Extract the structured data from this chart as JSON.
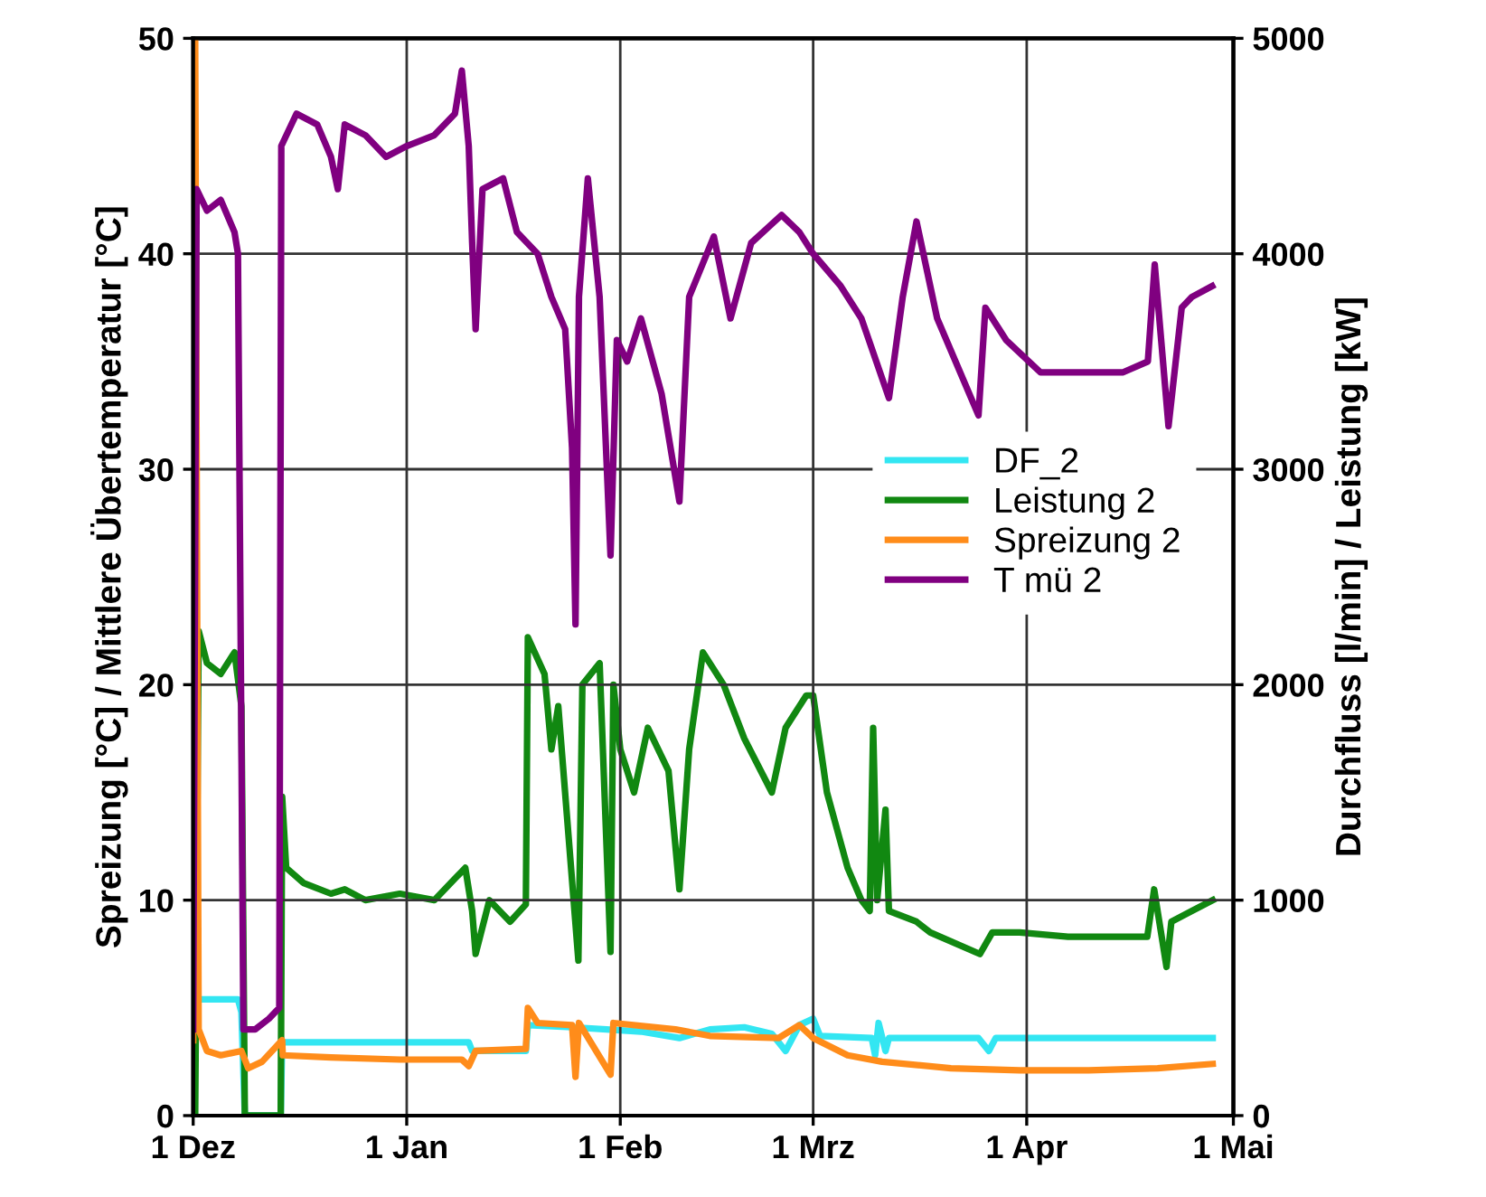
{
  "chart_data": {
    "type": "line",
    "ylabel": "Spreizung [°C] / Mittlere Übertemperatur [°C]",
    "y2label": "Durchfluss [l/min] / Leistung [kW]",
    "xlim": [
      "2000-12-01",
      "2001-05-01"
    ],
    "xticks": [
      {
        "value": "2000-12-01",
        "label": "1 Dez"
      },
      {
        "value": "2001-01-01",
        "label": "1 Jan"
      },
      {
        "value": "2001-02-01",
        "label": "1 Feb"
      },
      {
        "value": "2001-03-01",
        "label": "1 Mrz"
      },
      {
        "value": "2001-04-01",
        "label": "1 Apr"
      },
      {
        "value": "2001-05-01",
        "label": "1 Mai"
      }
    ],
    "ylim": [
      0,
      50
    ],
    "yticks": [
      0,
      10,
      20,
      30,
      40,
      50
    ],
    "y2lim": [
      0,
      5000
    ],
    "y2ticks": [
      0,
      1000,
      2000,
      3000,
      4000,
      5000
    ],
    "grid": true,
    "legend": "right",
    "line_style": "solid",
    "marker": "none",
    "series": [
      {
        "name": "DF_2",
        "color": "#33e6f2",
        "axis": "y2",
        "x": [
          "2000-12-01T07:00",
          "2000-12-07T12:00",
          "2000-12-08",
          "2000-12-08T12:00",
          "2000-12-13T17:00",
          "2000-12-13T22:00",
          "2001-01-10",
          "2001-01-10T12:00",
          "2001-01-18T07:00",
          "2001-01-18T14:00",
          "2001-01-25",
          "2001-01-30",
          "2001-02-04",
          "2001-02-09T14:00",
          "2001-02-14",
          "2001-02-19",
          "2001-02-23",
          "2001-02-25",
          "2001-02-27",
          "2001-03-01",
          "2001-03-02",
          "2001-03-09T12:00",
          "2001-03-10",
          "2001-03-10T12:00",
          "2001-03-11T12:00",
          "2001-03-12",
          "2001-03-25",
          "2001-03-26T12:00",
          "2001-03-27T12:00",
          "2001-04-28"
        ],
        "values": [
          540,
          540,
          480,
          0,
          0,
          340,
          340,
          300,
          300,
          420,
          410,
          400,
          390,
          360,
          400,
          410,
          380,
          300,
          420,
          450,
          370,
          360,
          280,
          430,
          300,
          360,
          360,
          300,
          360,
          360
        ]
      },
      {
        "name": "Leistung 2",
        "color": "#118811",
        "axis": "y2",
        "x": [
          "2000-12-01T07:00",
          "2000-12-01T19:00",
          "2000-12-03",
          "2000-12-05",
          "2000-12-07",
          "2000-12-08",
          "2000-12-08T12:00",
          "2000-12-13T17:00",
          "2000-12-13T22:00",
          "2000-12-14T12:00",
          "2000-12-17",
          "2000-12-21",
          "2000-12-23",
          "2000-12-26",
          "2000-12-31",
          "2001-01-05",
          "2001-01-08",
          "2001-01-09T12:00",
          "2001-01-10T12:00",
          "2001-01-11",
          "2001-01-13",
          "2001-01-16",
          "2001-01-18T07:00",
          "2001-01-18T14:00",
          "2001-01-21",
          "2001-01-22",
          "2001-01-23",
          "2001-01-25T22:00",
          "2001-01-26T12:00",
          "2001-01-29",
          "2001-01-30T14:00",
          "2001-01-31",
          "2001-02-01",
          "2001-02-03",
          "2001-02-05",
          "2001-02-08",
          "2001-02-09T14:00",
          "2001-02-11",
          "2001-02-13",
          "2001-02-16",
          "2001-02-19",
          "2001-02-23",
          "2001-02-25",
          "2001-02-28",
          "2001-03-01",
          "2001-03-03",
          "2001-03-06",
          "2001-03-08",
          "2001-03-09T05:00",
          "2001-03-09T17:00",
          "2001-03-10T07:00",
          "2001-03-11T12:00",
          "2001-03-12",
          "2001-03-16",
          "2001-03-18",
          "2001-03-25T05:00",
          "2001-03-27",
          "2001-03-31",
          "2001-04-07",
          "2001-04-11",
          "2001-04-18T12:00",
          "2001-04-19T12:00",
          "2001-04-21T07:00",
          "2001-04-22",
          "2001-04-25",
          "2001-04-28"
        ],
        "values": [
          0,
          2250,
          2100,
          2050,
          2150,
          1900,
          0,
          0,
          1480,
          1150,
          1080,
          1030,
          1050,
          1000,
          1030,
          1000,
          1100,
          1150,
          950,
          750,
          1000,
          900,
          980,
          2220,
          2050,
          1700,
          1900,
          720,
          2000,
          2100,
          760,
          2000,
          1700,
          1500,
          1800,
          1600,
          1050,
          1700,
          2150,
          2000,
          1750,
          1500,
          1800,
          1950,
          1950,
          1500,
          1150,
          1000,
          950,
          1800,
          1000,
          1420,
          950,
          900,
          850,
          750,
          850,
          850,
          830,
          830,
          830,
          1050,
          690,
          900,
          950,
          1000
        ]
      },
      {
        "name": "Spreizung 2",
        "color": "#ff8c1a",
        "x": [
          "2000-12-01",
          "2000-12-01T02:00",
          "2000-12-01T07:00",
          "2000-12-01T19:00",
          "2000-12-03",
          "2000-12-05",
          "2000-12-08",
          "2000-12-09",
          "2000-12-11",
          "2000-12-13T22:00",
          "2000-12-14",
          "2000-12-21",
          "2000-12-31",
          "2001-01-09",
          "2001-01-10",
          "2001-01-11",
          "2001-01-18T07:00",
          "2001-01-18T14:00",
          "2001-01-20",
          "2001-01-25",
          "2001-01-25T12:00",
          "2001-01-26",
          "2001-01-30T14:00",
          "2001-01-31",
          "2001-02-09",
          "2001-02-14",
          "2001-02-24",
          "2001-02-27",
          "2001-03-01",
          "2001-03-06",
          "2001-03-11",
          "2001-03-21",
          "2001-03-31",
          "2001-04-10",
          "2001-04-20",
          "2001-04-28"
        ],
        "values": [
          3.5,
          50,
          50,
          4,
          3,
          2.8,
          3,
          2.2,
          2.5,
          3.5,
          2.8,
          2.7,
          2.6,
          2.6,
          2.3,
          3,
          3.1,
          5,
          4.3,
          4.2,
          1.8,
          4.3,
          1.9,
          4.3,
          4,
          3.7,
          3.6,
          4.2,
          3.6,
          2.8,
          2.5,
          2.2,
          2.1,
          2.1,
          2.2,
          2.4
        ]
      },
      {
        "name": "T mü 2",
        "color": "#800080",
        "x": [
          "2000-12-01",
          "2000-12-01T12:00",
          "2000-12-03",
          "2000-12-05",
          "2000-12-07",
          "2000-12-07T12:00",
          "2000-12-08T07:00",
          "2000-12-10",
          "2000-12-12",
          "2000-12-13T12:00",
          "2000-12-13T19:00",
          "2000-12-16",
          "2000-12-19",
          "2000-12-21",
          "2000-12-22",
          "2000-12-23",
          "2000-12-26",
          "2000-12-29",
          "2001-01-01",
          "2001-01-05",
          "2001-01-08",
          "2001-01-09",
          "2001-01-10",
          "2001-01-10T12:00",
          "2001-01-11",
          "2001-01-12",
          "2001-01-15",
          "2001-01-17",
          "2001-01-20",
          "2001-01-22",
          "2001-01-24",
          "2001-01-25",
          "2001-01-25T12:00",
          "2001-01-26",
          "2001-01-27T07:00",
          "2001-01-29",
          "2001-01-30T14:00",
          "2001-01-31T12:00",
          "2001-02-02",
          "2001-02-04",
          "2001-02-07",
          "2001-02-09T14:00",
          "2001-02-11",
          "2001-02-14T14:00",
          "2001-02-17",
          "2001-02-20",
          "2001-02-24T10:00",
          "2001-02-27",
          "2001-03-01",
          "2001-03-05",
          "2001-03-08",
          "2001-03-12",
          "2001-03-14",
          "2001-03-16",
          "2001-03-19",
          "2001-03-25",
          "2001-03-26",
          "2001-03-29",
          "2001-04-03",
          "2001-04-08",
          "2001-04-11",
          "2001-04-15",
          "2001-04-18T14:00",
          "2001-04-19T14:00",
          "2001-04-21T14:00",
          "2001-04-23T12:00",
          "2001-04-25",
          "2001-04-27T22:00"
        ],
        "values": [
          4,
          43,
          42,
          42.5,
          41,
          40,
          4,
          4,
          4.5,
          5,
          45,
          46.5,
          46,
          44.5,
          43,
          46,
          45.5,
          44.5,
          45,
          45.5,
          46.5,
          48.5,
          45,
          40.5,
          36.5,
          43,
          43.5,
          41,
          40,
          38,
          36.5,
          31,
          22.8,
          38,
          43.5,
          38,
          26,
          36,
          35,
          37,
          33.5,
          28.5,
          38,
          40.8,
          37,
          40.5,
          41.8,
          41,
          40,
          38.5,
          37,
          33.3,
          38,
          41.5,
          37,
          32.5,
          37.5,
          36,
          34.5,
          34.5,
          34.5,
          34.5,
          35,
          39.5,
          32,
          37.5,
          38,
          38.5
        ]
      }
    ]
  }
}
